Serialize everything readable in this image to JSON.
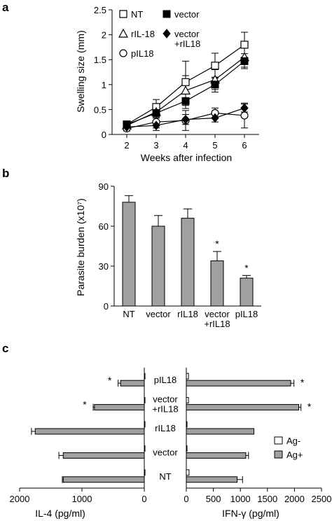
{
  "panels": {
    "a": {
      "letter": "a"
    },
    "b": {
      "letter": "b"
    },
    "c": {
      "letter": "c"
    }
  },
  "colors": {
    "bar_fill": "#a0a0a0",
    "bar_stroke": "#000000",
    "open_fill": "#ffffff",
    "axis": "#000000"
  },
  "chart_data": [
    {
      "id": "a",
      "type": "line",
      "xlabel": "Weeks after infection",
      "ylabel": "Swelling size (mm)",
      "x": [
        2,
        3,
        4,
        5,
        6
      ],
      "xlim": [
        1.5,
        6.5
      ],
      "ylim": [
        0,
        2.5
      ],
      "xticks": [
        "2",
        "3",
        "4",
        "5",
        "6"
      ],
      "yticks": [
        "0",
        "0.5",
        "1",
        "1.5",
        "2",
        "2.5"
      ],
      "series": [
        {
          "name": "NT",
          "marker": "open-square",
          "values": [
            0.2,
            0.55,
            1.05,
            1.38,
            1.8
          ],
          "errors": [
            0.05,
            0.15,
            0.42,
            0.25,
            0.25
          ]
        },
        {
          "name": "rIL-18",
          "marker": "open-triangle",
          "values": [
            0.18,
            0.45,
            0.88,
            1.1,
            1.55
          ],
          "errors": [
            0.05,
            0.1,
            0.3,
            0.2,
            0.2
          ]
        },
        {
          "name": "pIL18",
          "marker": "open-circle",
          "values": [
            0.12,
            0.25,
            0.28,
            0.43,
            0.38
          ],
          "errors": [
            0.05,
            0.12,
            0.2,
            0.1,
            0.25
          ]
        },
        {
          "name": "vector",
          "marker": "filled-square",
          "values": [
            0.2,
            0.43,
            0.67,
            1.0,
            1.47
          ],
          "errors": [
            0.05,
            0.1,
            0.15,
            0.15,
            0.15
          ]
        },
        {
          "name": "vector\n+rIL18",
          "marker": "filled-diamond",
          "values": [
            0.15,
            0.18,
            0.3,
            0.33,
            0.53
          ],
          "errors": [
            0.05,
            0.1,
            0.1,
            0.08,
            0.08
          ]
        }
      ]
    },
    {
      "id": "b",
      "type": "bar",
      "ylabel": "Parasite burden (x10⁷)",
      "categories": [
        "NT",
        "vector",
        "rIL18",
        "vector\n+rIL18",
        "pIL18"
      ],
      "values": [
        78,
        60,
        66,
        34,
        21
      ],
      "errors": [
        5,
        8,
        7,
        7,
        2
      ],
      "significance": [
        "",
        "",
        "",
        "*",
        "*"
      ],
      "ylim": [
        0,
        90
      ],
      "yticks": [
        "0",
        "30",
        "60",
        "90"
      ]
    },
    {
      "id": "c-left",
      "type": "bar",
      "orientation": "horizontal-reversed",
      "xlabel": "IL-4 (pg/ml)",
      "categories": [
        "pIL18",
        "vector\n+rIL18",
        "rIL18",
        "vector",
        "NT"
      ],
      "series": [
        {
          "name": "Ag-",
          "values": [
            0,
            0,
            0,
            0,
            0
          ]
        },
        {
          "name": "Ag+",
          "values": [
            380,
            800,
            1750,
            1300,
            1300
          ],
          "errors": [
            40,
            20,
            60,
            70,
            15
          ]
        }
      ],
      "significance": [
        "*",
        "*",
        "",
        "",
        ""
      ],
      "xlim": [
        0,
        2000
      ],
      "xticks": [
        "2000",
        "1000",
        "0"
      ]
    },
    {
      "id": "c-right",
      "type": "bar",
      "orientation": "horizontal",
      "xlabel": "IFN-γ (pg/ml)",
      "categories": [
        "pIL18",
        "vector\n+rIL18",
        "rIL18",
        "vector",
        "NT"
      ],
      "series": [
        {
          "name": "Ag-",
          "values": [
            40,
            40,
            0,
            0,
            50
          ]
        },
        {
          "name": "Ag+",
          "values": [
            1930,
            2080,
            1250,
            1100,
            940
          ],
          "errors": [
            60,
            40,
            0,
            50,
            100
          ]
        }
      ],
      "significance": [
        "*",
        "*",
        "",
        "",
        ""
      ],
      "xlim": [
        0,
        2500
      ],
      "xticks": [
        "0",
        "500",
        "1000",
        "1500",
        "2000",
        "2500"
      ],
      "legend": [
        "Ag-",
        "Ag+"
      ]
    }
  ]
}
